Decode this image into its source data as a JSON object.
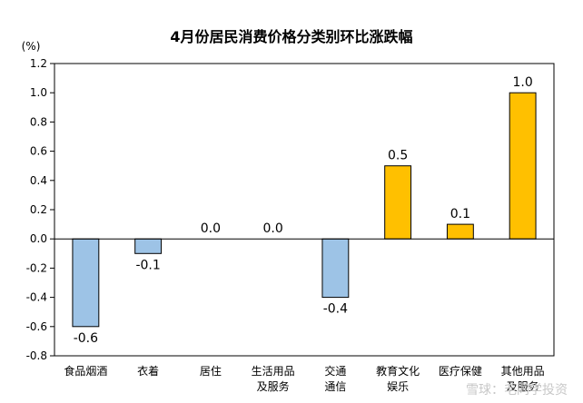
{
  "chart_data": {
    "type": "bar",
    "title": "4月份居民消费价格分类别环比涨跌幅",
    "ylabel": "(%)",
    "xlabel": "",
    "ylim": [
      -0.8,
      1.2
    ],
    "yticks": [
      "1.2",
      "1.0",
      "0.8",
      "0.6",
      "0.4",
      "0.2",
      "0.0",
      "-0.2",
      "-0.4",
      "-0.6",
      "-0.8"
    ],
    "ytick_values": [
      1.2,
      1.0,
      0.8,
      0.6,
      0.4,
      0.2,
      0.0,
      -0.2,
      -0.4,
      -0.6,
      -0.8
    ],
    "categories": [
      [
        "食品烟酒"
      ],
      [
        "衣着"
      ],
      [
        "居住"
      ],
      [
        "生活用品",
        "及服务"
      ],
      [
        "交通",
        "通信"
      ],
      [
        "教育文化",
        "娱乐"
      ],
      [
        "医疗保健"
      ],
      [
        "其他用品",
        "及服务"
      ]
    ],
    "values": [
      -0.6,
      -0.1,
      0.0,
      0.0,
      -0.4,
      0.5,
      0.1,
      1.0
    ],
    "labels": [
      "-0.6",
      "-0.1",
      "0.0",
      "0.0",
      "-0.4",
      "0.5",
      "0.1",
      "1.0"
    ],
    "grid": false,
    "colors": {
      "positive": "#FFC000",
      "negative": "#9DC3E6",
      "border": "#000000"
    }
  },
  "watermark": "雪球：毛同学投资"
}
